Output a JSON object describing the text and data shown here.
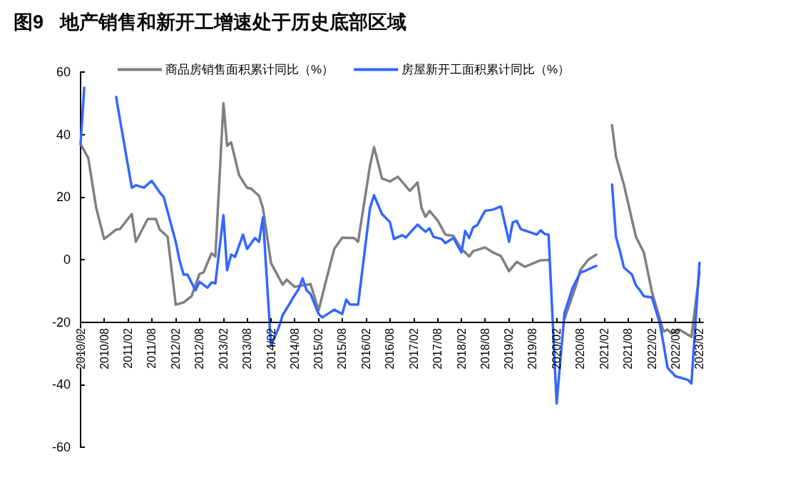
{
  "chart_data": {
    "type": "line",
    "title": "图9   地产销售和新开工增速处于历史底部区域",
    "xlim": [
      "2010-02",
      "2023-03"
    ],
    "xticks": [
      {
        "value": "2010-02",
        "label": "2010/02"
      },
      {
        "value": "2010-08",
        "label": "2010/08"
      },
      {
        "value": "2011-02",
        "label": "2011/02"
      },
      {
        "value": "2011-08",
        "label": "2011/08"
      },
      {
        "value": "2012-02",
        "label": "2012/02"
      },
      {
        "value": "2012-08",
        "label": "2012/08"
      },
      {
        "value": "2013-02",
        "label": "2013/02"
      },
      {
        "value": "2013-08",
        "label": "2013/08"
      },
      {
        "value": "2014-02",
        "label": "2014/02"
      },
      {
        "value": "2014-08",
        "label": "2014/08"
      },
      {
        "value": "2015-02",
        "label": "2015/02"
      },
      {
        "value": "2015-08",
        "label": "2015/08"
      },
      {
        "value": "2016-02",
        "label": "2016/02"
      },
      {
        "value": "2016-08",
        "label": "2016/08"
      },
      {
        "value": "2017-02",
        "label": "2017/02"
      },
      {
        "value": "2017-08",
        "label": "2017/08"
      },
      {
        "value": "2018-02",
        "label": "2018/02"
      },
      {
        "value": "2018-08",
        "label": "2018/08"
      },
      {
        "value": "2019-02",
        "label": "2019/02"
      },
      {
        "value": "2019-08",
        "label": "2019/08"
      },
      {
        "value": "2020-02",
        "label": "2020/02"
      },
      {
        "value": "2020-08",
        "label": "2020/08"
      },
      {
        "value": "2021-02",
        "label": "2021/02"
      },
      {
        "value": "2021-08",
        "label": "2021/08"
      },
      {
        "value": "2022-02",
        "label": "2022/02"
      },
      {
        "value": "2022-08",
        "label": "2022/08"
      },
      {
        "value": "2023-02",
        "label": "2023/02"
      }
    ],
    "ylim": [
      -60,
      60
    ],
    "yticks": [
      -60,
      -40,
      -20,
      0,
      20,
      40,
      60
    ],
    "grid": false,
    "legend": "top",
    "marker": "none",
    "line_style": "solid",
    "series": [
      {
        "name": "商品房销售面积累计同比（%）",
        "color": "#808080",
        "x": [
          "2010-02",
          "2010-04",
          "2010-06",
          "2010-08",
          "2010-11",
          "2010-12",
          "2011-03",
          "2011-04",
          "2011-07",
          "2011-09",
          "2011-10",
          "2011-12",
          "2012-02",
          "2012-04",
          "2012-06",
          "2012-08",
          "2012-09",
          "2012-11",
          "2012-12",
          "2013-02",
          "2013-03",
          "2013-04",
          "2013-06",
          "2013-08",
          "2013-09",
          "2013-11",
          "2013-12",
          "2014-02",
          "2014-05",
          "2014-06",
          "2014-08",
          "2014-12",
          "2015-02",
          "2015-04",
          "2015-06",
          "2015-08",
          "2015-11",
          "2015-12",
          "2016-03",
          "2016-04",
          "2016-06",
          "2016-08",
          "2016-10",
          "2017-01",
          "2017-03",
          "2017-04",
          "2017-05",
          "2017-06",
          "2017-08",
          "2017-10",
          "2017-12",
          "2018-02",
          "2018-04",
          "2018-05",
          "2018-08",
          "2018-10",
          "2018-12",
          "2019-02",
          "2019-04",
          "2019-06",
          "2019-10",
          "2019-12",
          "2020-02",
          "2020-04",
          "2020-07",
          "2020-08",
          "2020-10",
          "2020-12",
          "2021-02",
          "2021-04",
          "2021-05",
          "2021-07",
          "2021-10",
          "2021-12",
          "2022-02",
          "2022-05",
          "2022-06",
          "2022-07",
          "2022-09",
          "2022-12",
          "2023-02"
        ],
        "values": [
          37,
          32.5,
          16.5,
          6.6,
          9.6,
          9.8,
          14.6,
          5.7,
          13,
          13,
          9.6,
          7.3,
          -14.4,
          -13.7,
          -11.7,
          -4.6,
          -4.1,
          2,
          1,
          50,
          36.4,
          37.5,
          27,
          23,
          22.7,
          20.4,
          16.5,
          -1.1,
          -8,
          -6.4,
          -8.7,
          -7.8,
          -16.2,
          -6.4,
          3.4,
          7,
          6.9,
          5.7,
          30,
          36,
          26,
          25,
          26.5,
          22,
          24.7,
          16.5,
          13.7,
          15.6,
          12.6,
          8,
          7.6,
          3.4,
          1,
          2.7,
          3.9,
          2.3,
          1.1,
          -3.7,
          -0.7,
          -2.3,
          -0.2,
          -0.1,
          null,
          -19,
          -8,
          -3.3,
          0,
          1.6,
          null,
          43,
          33,
          24,
          7.3,
          2.3,
          -10.3,
          -23,
          -22.4,
          -23.6,
          -22.4,
          -24.7,
          -4
        ]
      },
      {
        "name": "房屋新开工面积累计同比（%）",
        "color": "#3366ff",
        "x": [
          "2010-02",
          "2010-03",
          "2010-04",
          "2010-11",
          "2010-12",
          "2011-03",
          "2011-04",
          "2011-06",
          "2011-08",
          "2011-10",
          "2011-11",
          "2012-02",
          "2012-03",
          "2012-04",
          "2012-05",
          "2012-07",
          "2012-08",
          "2012-10",
          "2012-11",
          "2012-12",
          "2013-02",
          "2013-03",
          "2013-04",
          "2013-05",
          "2013-07",
          "2013-08",
          "2013-10",
          "2013-11",
          "2013-12",
          "2014-02",
          "2014-04",
          "2014-05",
          "2014-08",
          "2014-09",
          "2014-10",
          "2014-11",
          "2014-12",
          "2015-02",
          "2015-03",
          "2015-06",
          "2015-08",
          "2015-09",
          "2015-10",
          "2015-12",
          "2016-03",
          "2016-04",
          "2016-06",
          "2016-08",
          "2016-09",
          "2016-11",
          "2016-12",
          "2017-03",
          "2017-05",
          "2017-06",
          "2017-07",
          "2017-09",
          "2017-10",
          "2017-12",
          "2018-02",
          "2018-03",
          "2018-04",
          "2018-05",
          "2018-06",
          "2018-08",
          "2018-10",
          "2018-12",
          "2019-02",
          "2019-03",
          "2019-04",
          "2019-05",
          "2019-09",
          "2019-10",
          "2019-11",
          "2019-12",
          "2020-02",
          "2020-04",
          "2020-06",
          "2020-08",
          "2020-09",
          "2020-11",
          "2020-12",
          "2021-02",
          "2021-04",
          "2021-05",
          "2021-06",
          "2021-07",
          "2021-09",
          "2021-10",
          "2021-11",
          "2021-12",
          "2022-02",
          "2022-04",
          "2022-05",
          "2022-06",
          "2022-08",
          "2022-11",
          "2022-12",
          "2023-02"
        ],
        "values": [
          37,
          55,
          null,
          52,
          44.6,
          23,
          23.8,
          23,
          25.2,
          21.5,
          20,
          5.7,
          -0.2,
          -4.8,
          -4.8,
          -9.8,
          -7.1,
          -9,
          -7.3,
          -7.6,
          14.2,
          -3.4,
          1.6,
          0.9,
          8,
          3.4,
          6.9,
          5.7,
          13.5,
          -27.5,
          -21.7,
          -17.8,
          -11.4,
          -9.4,
          -6,
          -9.8,
          -11,
          -17.4,
          -18.5,
          -16,
          -17.4,
          -12.8,
          -14.4,
          -14.4,
          16.5,
          20.6,
          14.6,
          12,
          6.6,
          7.8,
          7.1,
          11.2,
          8.9,
          10,
          7.3,
          6.6,
          5.3,
          6.9,
          2.3,
          9.2,
          6.9,
          10.3,
          11,
          15.6,
          16,
          17,
          5.7,
          11.9,
          12.4,
          9.8,
          8,
          9.4,
          8.2,
          8,
          -46,
          -17.2,
          -9.2,
          -4.1,
          -3.7,
          -2.5,
          -2,
          null,
          24,
          7.3,
          2.7,
          -2.5,
          -4.8,
          -8.2,
          -9.8,
          -11.7,
          -12.1,
          -20.1,
          -27,
          -34.6,
          -37.3,
          -38.4,
          -39.6,
          -1
        ]
      }
    ]
  }
}
